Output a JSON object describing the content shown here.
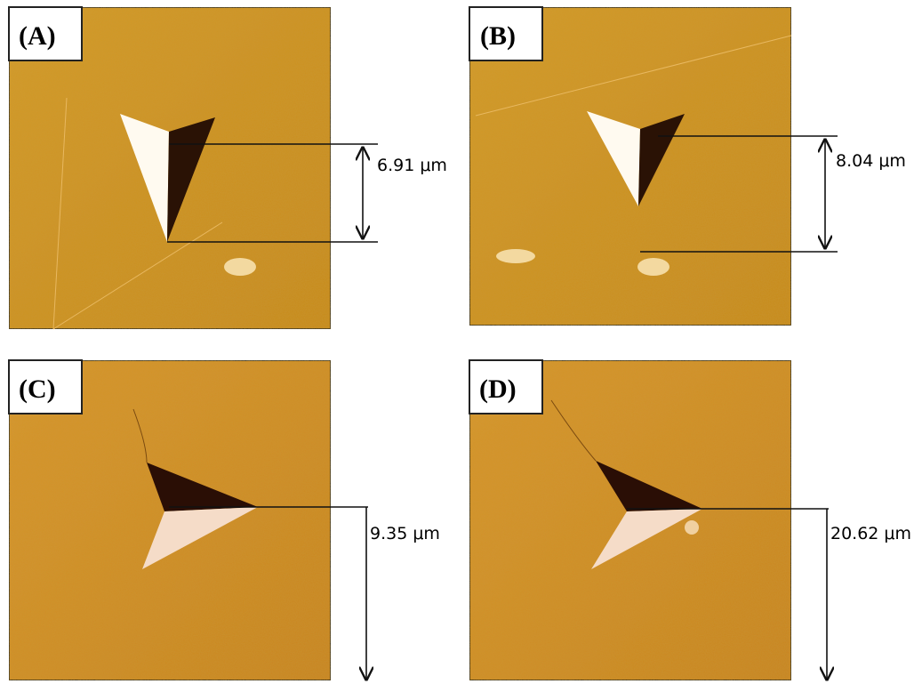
{
  "panels": [
    {
      "label": "(A)",
      "measurement": "6.91 μm"
    },
    {
      "label": "(B)",
      "measurement": "8.04 μm"
    },
    {
      "label": "(C)",
      "measurement": "9.35 μm"
    },
    {
      "label": "(D)",
      "measurement": "20.62 μm"
    }
  ]
}
